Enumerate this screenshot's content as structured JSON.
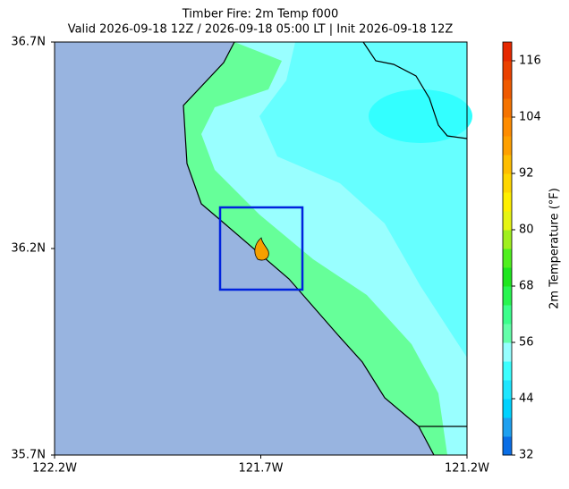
{
  "title": "Timber Fire: 2m Temp f000",
  "subtitle": "Valid 2026-09-18 12Z / 2026-09-18 05:00 LT | Init 2026-09-18 12Z",
  "map": {
    "xlim": [
      -122.2,
      -121.2
    ],
    "ylim": [
      35.7,
      36.7
    ],
    "xticks": [
      {
        "value": -122.2,
        "label": "122.2W"
      },
      {
        "value": -121.7,
        "label": "121.7W"
      },
      {
        "value": -121.2,
        "label": "121.2W"
      }
    ],
    "yticks": [
      {
        "value": 35.7,
        "label": "35.7N"
      },
      {
        "value": 36.2,
        "label": "36.2N"
      },
      {
        "value": 36.7,
        "label": "36.7N"
      }
    ]
  },
  "colorbar": {
    "label": "2m Temperature (°F)",
    "range": [
      32,
      120
    ],
    "ticks": [
      32,
      44,
      56,
      68,
      80,
      92,
      104,
      116
    ],
    "colors": [
      "#0a6ee6",
      "#1ea0f0",
      "#00d2ff",
      "#1ee6ff",
      "#3cffff",
      "#96ffff",
      "#64ffaa",
      "#3cff8c",
      "#28f550",
      "#1ee61e",
      "#50f01e",
      "#a0f01e",
      "#e6f514",
      "#fff000",
      "#ffd700",
      "#ffbe00",
      "#ffa000",
      "#ff8c00",
      "#f57300",
      "#f05a00",
      "#eb4100",
      "#e62800"
    ]
  }
}
